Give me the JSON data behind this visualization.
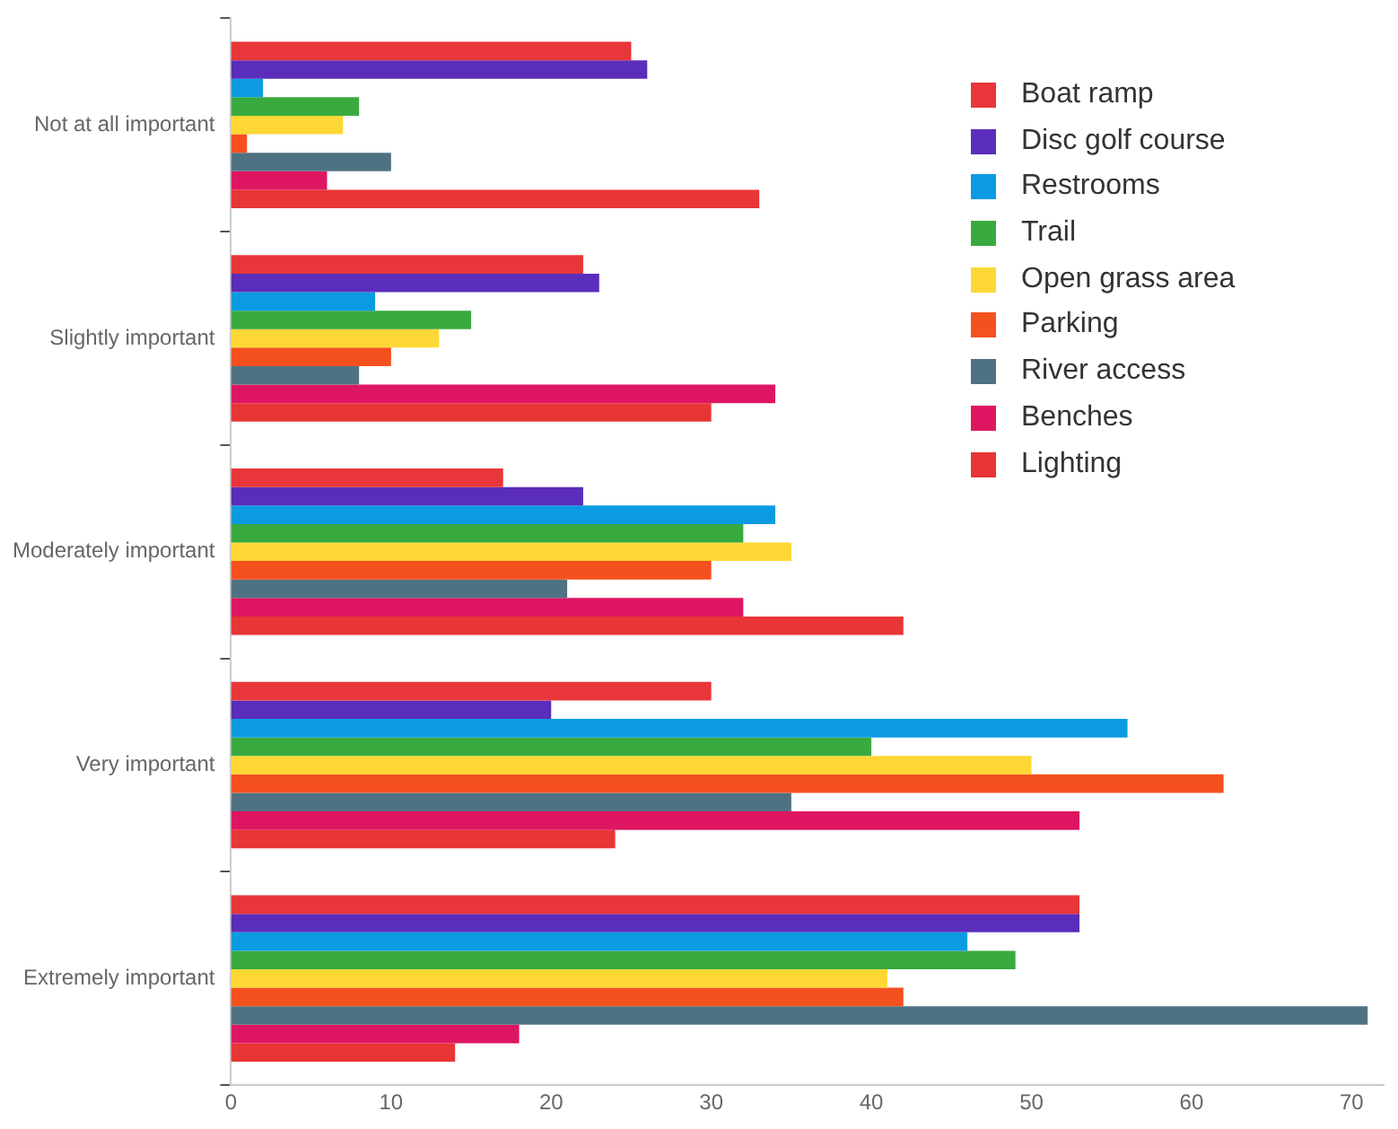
{
  "chart_data": {
    "type": "bar",
    "orientation": "horizontal",
    "categories": [
      "Not at all important",
      "Slightly important",
      "Moderately important",
      "Very important",
      "Extremely important"
    ],
    "series": [
      {
        "name": "Boat ramp",
        "color": "#e8363a",
        "values": [
          25,
          22,
          17,
          30,
          53
        ]
      },
      {
        "name": "Disc golf course",
        "color": "#5b2dbb",
        "values": [
          26,
          23,
          22,
          20,
          53
        ]
      },
      {
        "name": "Restrooms",
        "color": "#0a9be3",
        "values": [
          2,
          9,
          34,
          56,
          46
        ]
      },
      {
        "name": "Trail",
        "color": "#39aa40",
        "values": [
          8,
          15,
          32,
          40,
          49
        ]
      },
      {
        "name": "Open grass area",
        "color": "#fdd835",
        "values": [
          7,
          13,
          35,
          50,
          41
        ]
      },
      {
        "name": "Parking",
        "color": "#f4511e",
        "values": [
          1,
          10,
          30,
          62,
          42
        ]
      },
      {
        "name": "River access",
        "color": "#4f7283",
        "values": [
          10,
          8,
          21,
          35,
          71
        ]
      },
      {
        "name": "Benches",
        "color": "#de1662",
        "values": [
          6,
          34,
          32,
          53,
          18
        ]
      },
      {
        "name": "Lighting",
        "color": "#e83535",
        "values": [
          33,
          30,
          42,
          24,
          14
        ]
      }
    ],
    "xlim": [
      0,
      72
    ],
    "xticks": [
      0,
      10,
      20,
      30,
      40,
      50,
      60,
      70
    ],
    "grid": false,
    "legend": "top right"
  }
}
